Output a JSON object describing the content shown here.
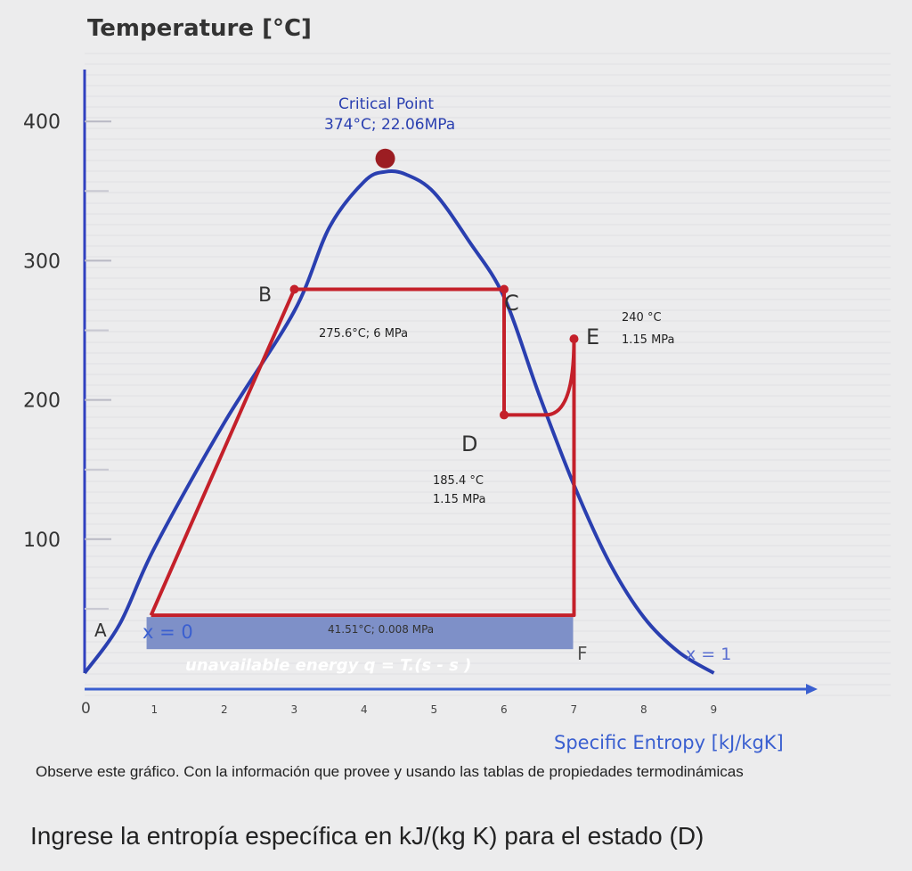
{
  "chart_data": {
    "type": "line",
    "ylabel": "Temperature [°C]",
    "xlabel": "Specific Entropy [kJ/kgK]",
    "xlim": [
      0,
      9
    ],
    "ylim": [
      0,
      400
    ],
    "x_ticks": [
      "0",
      "1",
      "2",
      "3",
      "4",
      "5",
      "6",
      "7",
      "8",
      "9"
    ],
    "y_ticks": [
      "400",
      "300",
      "200",
      "100"
    ],
    "saturation_dome": {
      "x": [
        0.0,
        0.5,
        1.0,
        2.0,
        3.0,
        3.5,
        4.0,
        4.3,
        4.6,
        5.0,
        5.5,
        6.0,
        6.5,
        7.0,
        7.5,
        8.0,
        8.5,
        9.0
      ],
      "y": [
        0,
        35,
        90,
        180,
        260,
        320,
        353,
        360,
        358,
        345,
        310,
        270,
        200,
        135,
        80,
        40,
        15,
        0
      ]
    },
    "cycle": {
      "x": [
        0.95,
        3.0,
        6.0,
        6.0,
        6.6,
        7.0,
        7.0,
        0.95
      ],
      "y": [
        41.5,
        275.6,
        275.6,
        185.4,
        185.4,
        240,
        41.5,
        41.5
      ]
    },
    "critical_point": {
      "x": 4.3,
      "y": 374,
      "label_line1": "Critical Point",
      "label_line2": "374°C; 22.06MPa"
    },
    "points": [
      {
        "label": "A",
        "x": 0.95,
        "y": 41.5
      },
      {
        "label": "B",
        "x": 3.0,
        "y": 275.6
      },
      {
        "label": "C",
        "x": 6.0,
        "y": 275.6
      },
      {
        "label": "D",
        "x": 6.0,
        "y": 185.4
      },
      {
        "label": "E",
        "x": 7.0,
        "y": 240
      },
      {
        "label": "F",
        "x": 7.0,
        "y": 41.5
      }
    ],
    "annotations": {
      "bc": "275.6°C; 6 MPa",
      "e1": "240 °C",
      "e2": "1.15 MPa",
      "d1": "185.4 °C",
      "d2": "1.15 MPa",
      "af": "41.51°C; 0.008 MPa",
      "x0": "x = 0",
      "x1": "x = 1",
      "unavailable": "unavailable energy q = T.(s  - s )"
    },
    "colors": {
      "dome": "#2a3fb0",
      "cycle": "#c4202a",
      "critical": "#9c1d22",
      "axis_y": "#3040c0",
      "axis_x": "#3a5fd0",
      "band": "#7e90c8"
    }
  },
  "question": {
    "line1": "Observe este gráfico.  Con  la información que provee y usando las tablas de propiedades termodinámicas",
    "line2": "Ingrese la  entropía específica en kJ/(kg K) para el estado (D)"
  }
}
